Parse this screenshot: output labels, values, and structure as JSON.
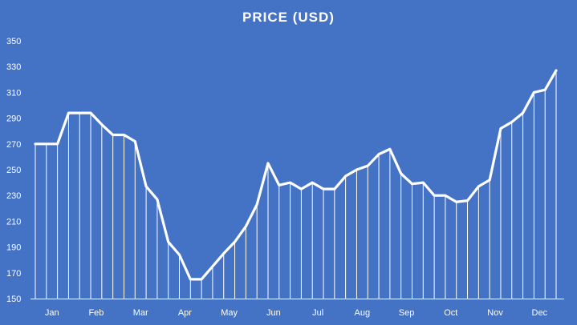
{
  "chart_data": {
    "type": "line",
    "title": "PRICE (USD)",
    "xlabel": "",
    "ylabel": "",
    "ylim": [
      150,
      350
    ],
    "yticks": [
      150,
      170,
      190,
      210,
      230,
      250,
      270,
      290,
      310,
      330,
      350
    ],
    "month_labels": [
      "Jan",
      "Feb",
      "Mar",
      "Apr",
      "May",
      "Jun",
      "Jul",
      "Aug",
      "Sep",
      "Oct",
      "Nov",
      "Dec"
    ],
    "points_per_month": 4,
    "series": [
      {
        "values": [
          270,
          270,
          270,
          294,
          294,
          294,
          285,
          277,
          277,
          272,
          237,
          227,
          194,
          184,
          165,
          165,
          175,
          185,
          194,
          206,
          223,
          255,
          238,
          240,
          235,
          240,
          235,
          235,
          245,
          250,
          253,
          262,
          266,
          247,
          239,
          240,
          230,
          230,
          225,
          226,
          237,
          242,
          282,
          287,
          294,
          310,
          312,
          327
        ]
      }
    ],
    "line_color": "#ffffff",
    "drop_lines": true,
    "grid": false,
    "legend": "none"
  }
}
